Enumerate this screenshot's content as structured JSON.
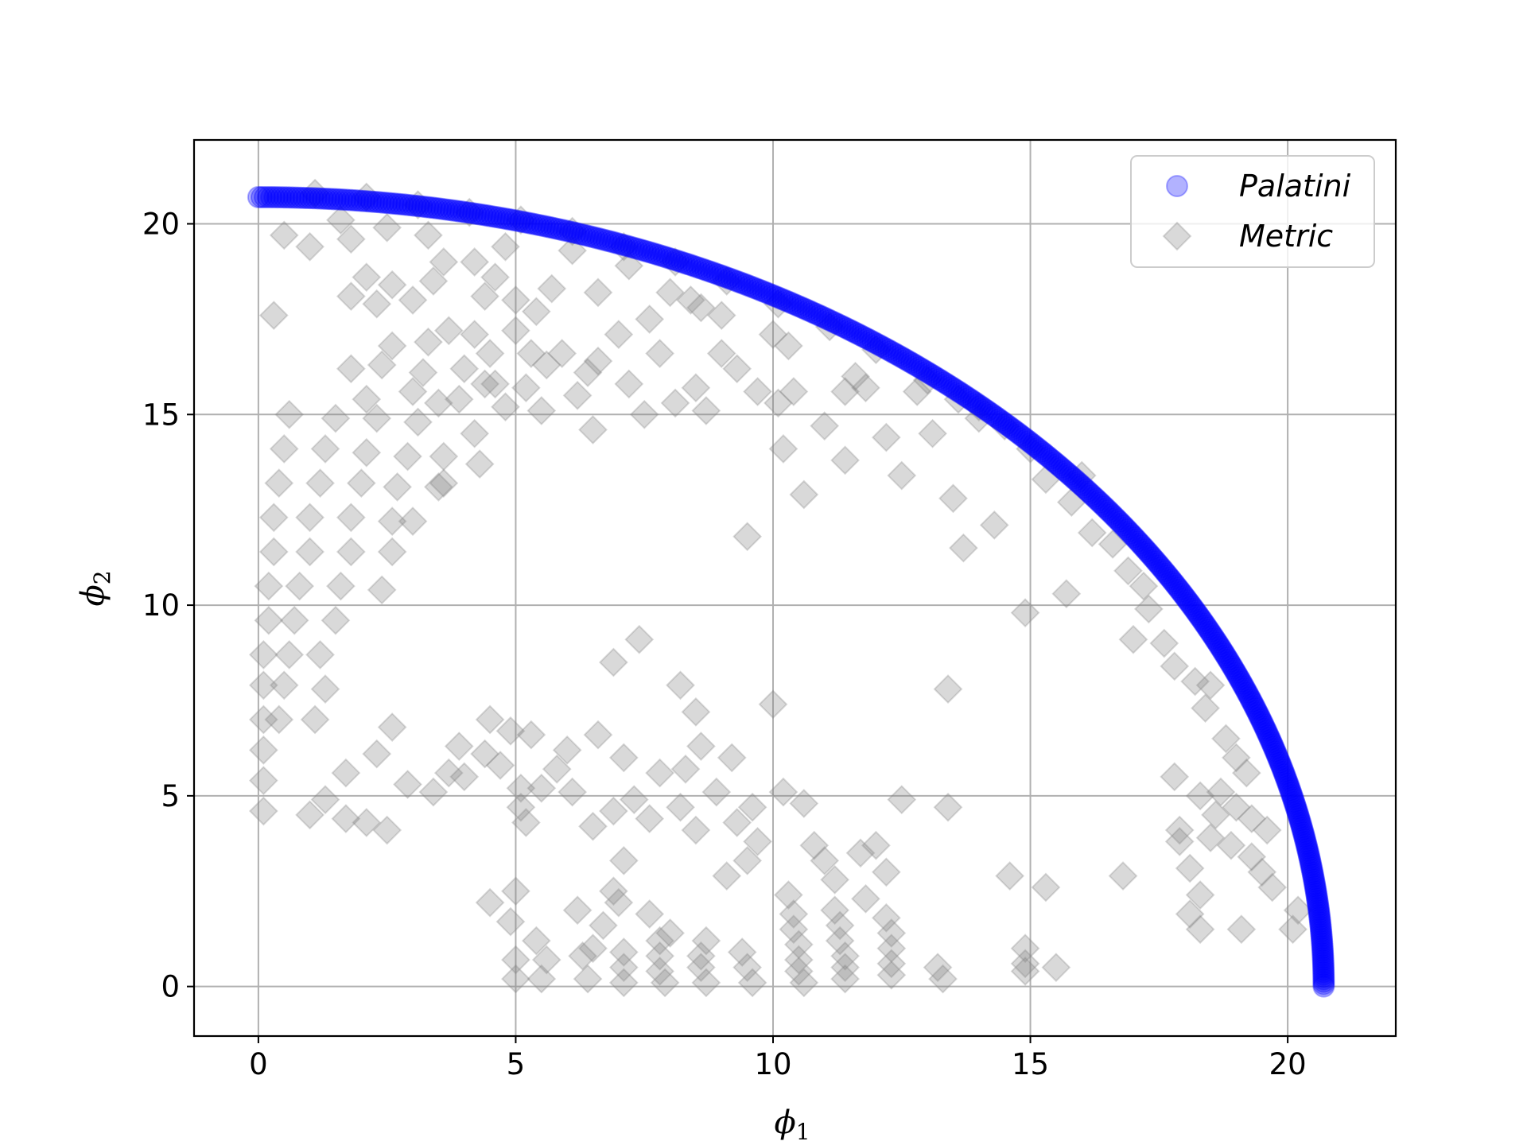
{
  "chart_data": {
    "type": "scatter",
    "xlabel": "ϕ",
    "xlabel_sub": "1",
    "ylabel": "ϕ",
    "ylabel_sub": "2",
    "xlim": [
      -1.25,
      22.1
    ],
    "ylim": [
      -1.3,
      22.2
    ],
    "xticks": [
      0,
      5,
      10,
      15,
      20
    ],
    "yticks": [
      0,
      5,
      10,
      15,
      20
    ],
    "grid": true,
    "legend_position": "top-right",
    "series": [
      {
        "name": "Palatini",
        "marker": "circle",
        "color": "#0000ff",
        "alpha": 0.3,
        "radius_data": 20.7,
        "angle_deg_range": [
          0,
          90
        ],
        "count": 520
      },
      {
        "name": "Metric",
        "marker": "diamond",
        "color": "#808080",
        "alpha": 0.3,
        "points": [
          [
            0.3,
            17.6
          ],
          [
            0.6,
            15
          ],
          [
            0.5,
            14.1
          ],
          [
            0.4,
            13.2
          ],
          [
            0.3,
            12.3
          ],
          [
            0.3,
            11.4
          ],
          [
            0.2,
            10.5
          ],
          [
            0.2,
            9.6
          ],
          [
            0.1,
            8.7
          ],
          [
            0.1,
            7.9
          ],
          [
            0.1,
            7
          ],
          [
            0.1,
            6.2
          ],
          [
            0.1,
            5.4
          ],
          [
            0.1,
            4.6
          ],
          [
            1.5,
            14.9
          ],
          [
            2.3,
            14.9
          ],
          [
            3.1,
            14.8
          ],
          [
            1.3,
            14.1
          ],
          [
            2.1,
            14
          ],
          [
            2.9,
            13.9
          ],
          [
            3.6,
            13.9
          ],
          [
            1.2,
            13.2
          ],
          [
            2.0,
            13.2
          ],
          [
            2.7,
            13.1
          ],
          [
            3.5,
            13.1
          ],
          [
            1.0,
            12.3
          ],
          [
            1.8,
            12.3
          ],
          [
            2.6,
            12.2
          ],
          [
            1.0,
            11.4
          ],
          [
            1.8,
            11.4
          ],
          [
            2.6,
            11.4
          ],
          [
            0.8,
            10.5
          ],
          [
            1.6,
            10.5
          ],
          [
            2.4,
            10.4
          ],
          [
            0.7,
            9.6
          ],
          [
            1.5,
            9.6
          ],
          [
            0.6,
            8.7
          ],
          [
            1.2,
            8.7
          ],
          [
            0.5,
            7.9
          ],
          [
            1.3,
            7.8
          ],
          [
            0.4,
            7
          ],
          [
            1.1,
            7
          ],
          [
            1.0,
            4.5
          ],
          [
            1.3,
            4.9
          ],
          [
            1.7,
            4.4
          ],
          [
            2.1,
            4.3
          ],
          [
            2.5,
            4.1
          ],
          [
            1.7,
            5.6
          ],
          [
            2.3,
            6.1
          ],
          [
            2.9,
            5.3
          ],
          [
            2.6,
            6.8
          ],
          [
            3.4,
            5.1
          ],
          [
            3.7,
            5.6
          ],
          [
            4.0,
            5.5
          ],
          [
            4.4,
            6.1
          ],
          [
            4.7,
            5.8
          ],
          [
            4.5,
            7
          ],
          [
            4.9,
            6.7
          ],
          [
            3.9,
            6.3
          ],
          [
            1.8,
            16.2
          ],
          [
            2.1,
            15.4
          ],
          [
            2.6,
            16.8
          ],
          [
            2.4,
            16.3
          ],
          [
            3.0,
            15.6
          ],
          [
            3.2,
            16.1
          ],
          [
            3.5,
            15.3
          ],
          [
            3.3,
            16.9
          ],
          [
            3.7,
            17.2
          ],
          [
            4.2,
            17.1
          ],
          [
            4.5,
            16.6
          ],
          [
            4.0,
            16.2
          ],
          [
            4.4,
            15.8
          ],
          [
            3.9,
            15.4
          ],
          [
            4.2,
            14.5
          ],
          [
            4.6,
            15.8
          ],
          [
            4.8,
            15.2
          ],
          [
            5.0,
            17.2
          ],
          [
            5.3,
            16.6
          ],
          [
            5.2,
            15.7
          ],
          [
            5.6,
            16.3
          ],
          [
            5.5,
            15.1
          ],
          [
            5.9,
            16.6
          ],
          [
            6.2,
            15.5
          ],
          [
            6.4,
            16.1
          ],
          [
            6.6,
            16.4
          ],
          [
            6.5,
            14.6
          ],
          [
            7.0,
            17.1
          ],
          [
            7.2,
            15.8
          ],
          [
            7.5,
            15
          ],
          [
            7.8,
            16.6
          ],
          [
            8.1,
            15.3
          ],
          [
            8.5,
            15.7
          ],
          [
            8.7,
            15.1
          ],
          [
            9.0,
            16.6
          ],
          [
            9.3,
            16.2
          ],
          [
            9.7,
            15.6
          ],
          [
            4.3,
            13.7
          ],
          [
            3.0,
            12.2
          ],
          [
            3.6,
            13.2
          ],
          [
            0.5,
            19.7
          ],
          [
            1.0,
            19.4
          ],
          [
            1.6,
            20.1
          ],
          [
            1.8,
            19.6
          ],
          [
            2.1,
            18.6
          ],
          [
            1.8,
            18.1
          ],
          [
            2.3,
            17.9
          ],
          [
            2.6,
            18.4
          ],
          [
            3.0,
            18.0
          ],
          [
            3.4,
            18.5
          ],
          [
            3.6,
            19.0
          ],
          [
            4.2,
            19.0
          ],
          [
            4.6,
            18.6
          ],
          [
            4.8,
            19.4
          ],
          [
            5.0,
            18.0
          ],
          [
            5.4,
            17.7
          ],
          [
            5.7,
            18.3
          ],
          [
            6.1,
            19.3
          ],
          [
            6.6,
            18.2
          ],
          [
            7.2,
            18.9
          ],
          [
            7.6,
            17.5
          ],
          [
            8.0,
            18.2
          ],
          [
            8.4,
            18.0
          ],
          [
            8.6,
            17.8
          ],
          [
            9.0,
            17.6
          ],
          [
            2.5,
            19.9
          ],
          [
            3.3,
            19.7
          ],
          [
            4.4,
            18.1
          ],
          [
            10.0,
            17.1
          ],
          [
            10.3,
            16.8
          ],
          [
            10.1,
            15.3
          ],
          [
            10.4,
            15.6
          ],
          [
            10.2,
            14.1
          ],
          [
            10.6,
            12.9
          ],
          [
            11.0,
            14.7
          ],
          [
            11.4,
            15.6
          ],
          [
            11.6,
            16
          ],
          [
            11.4,
            13.8
          ],
          [
            11.8,
            15.7
          ],
          [
            12.2,
            14.4
          ],
          [
            12.5,
            13.4
          ],
          [
            12.8,
            15.6
          ],
          [
            13.1,
            14.5
          ],
          [
            13.5,
            12.8
          ],
          [
            13.7,
            11.5
          ],
          [
            14.0,
            14.9
          ],
          [
            14.3,
            12.1
          ],
          [
            9.5,
            11.8
          ],
          [
            14.9,
            9.8
          ],
          [
            15.7,
            10.3
          ],
          [
            13.6,
            15.4
          ],
          [
            7.4,
            9.1
          ],
          [
            6.9,
            8.5
          ],
          [
            8.2,
            7.9
          ],
          [
            8.5,
            7.2
          ],
          [
            8.6,
            6.3
          ],
          [
            8.3,
            5.7
          ],
          [
            7.1,
            6
          ],
          [
            6.6,
            6.6
          ],
          [
            6.0,
            6.2
          ],
          [
            5.8,
            5.7
          ],
          [
            5.5,
            5.2
          ],
          [
            5.3,
            6.6
          ],
          [
            5.1,
            5.2
          ],
          [
            5.1,
            4.7
          ],
          [
            5.2,
            4.3
          ],
          [
            6.1,
            5.1
          ],
          [
            6.5,
            4.2
          ],
          [
            6.9,
            4.6
          ],
          [
            7.3,
            4.9
          ],
          [
            7.6,
            4.4
          ],
          [
            7.1,
            3.3
          ],
          [
            7.8,
            5.6
          ],
          [
            8.2,
            4.7
          ],
          [
            8.5,
            4.1
          ],
          [
            8.9,
            5.1
          ],
          [
            9.3,
            4.3
          ],
          [
            9.6,
            4.7
          ],
          [
            9.7,
            3.8
          ],
          [
            9.5,
            3.3
          ],
          [
            9.1,
            2.9
          ],
          [
            9.2,
            6
          ],
          [
            10.0,
            7.4
          ],
          [
            10.2,
            5.1
          ],
          [
            10.6,
            4.8
          ],
          [
            10.8,
            3.7
          ],
          [
            11.0,
            3.3
          ],
          [
            11.2,
            2.8
          ],
          [
            11.7,
            3.5
          ],
          [
            12.0,
            3.7
          ],
          [
            12.2,
            3.0
          ],
          [
            11.8,
            2.3
          ],
          [
            12.5,
            4.9
          ],
          [
            13.4,
            4.7
          ],
          [
            13.4,
            7.8
          ],
          [
            14.6,
            2.9
          ],
          [
            15.3,
            2.6
          ],
          [
            16.8,
            2.9
          ],
          [
            15.5,
            0.5
          ],
          [
            4.5,
            2.2
          ],
          [
            4.9,
            1.7
          ],
          [
            5.0,
            2.5
          ],
          [
            5.4,
            1.2
          ],
          [
            6.2,
            2.0
          ],
          [
            6.7,
            1.6
          ],
          [
            6.5,
            1.0
          ],
          [
            6.9,
            2.5
          ],
          [
            7.0,
            2.2
          ],
          [
            7.1,
            0.9
          ],
          [
            7.6,
            1.9
          ],
          [
            8.0,
            1.4
          ],
          [
            8.7,
            1.2
          ],
          [
            8.6,
            0.8
          ],
          [
            5.0,
            0.7
          ],
          [
            5.0,
            0.2
          ],
          [
            5.6,
            0.7
          ],
          [
            5.5,
            0.2
          ],
          [
            6.3,
            0.8
          ],
          [
            6.4,
            0.2
          ],
          [
            7.1,
            0.5
          ],
          [
            7.1,
            0.1
          ],
          [
            7.8,
            1.2
          ],
          [
            7.8,
            0.8
          ],
          [
            7.8,
            0.4
          ],
          [
            7.9,
            0.1
          ],
          [
            8.6,
            0.5
          ],
          [
            8.7,
            0.1
          ],
          [
            9.4,
            0.9
          ],
          [
            9.5,
            0.5
          ],
          [
            9.6,
            0.1
          ],
          [
            10.3,
            2.4
          ],
          [
            10.4,
            1.9
          ],
          [
            10.4,
            1.5
          ],
          [
            10.5,
            1.1
          ],
          [
            10.5,
            0.7
          ],
          [
            10.5,
            0.4
          ],
          [
            10.6,
            0.1
          ],
          [
            11.2,
            2.0
          ],
          [
            11.3,
            1.6
          ],
          [
            11.3,
            1.2
          ],
          [
            11.4,
            0.8
          ],
          [
            11.4,
            0.5
          ],
          [
            11.4,
            0.2
          ],
          [
            12.2,
            1.8
          ],
          [
            12.3,
            1.4
          ],
          [
            12.3,
            1.0
          ],
          [
            12.3,
            0.6
          ],
          [
            12.3,
            0.3
          ],
          [
            13.2,
            0.5
          ],
          [
            13.3,
            0.2
          ],
          [
            14.9,
            1
          ],
          [
            14.9,
            0.6
          ],
          [
            14.9,
            0.4
          ],
          [
            17.3,
            9.9
          ],
          [
            17.0,
            9.1
          ],
          [
            17.6,
            9.0
          ],
          [
            17.8,
            8.4
          ],
          [
            18.2,
            8.0
          ],
          [
            18.5,
            7.9
          ],
          [
            18.4,
            7.3
          ],
          [
            18.8,
            6.5
          ],
          [
            19.0,
            6.0
          ],
          [
            19.2,
            5.6
          ],
          [
            18.7,
            5.1
          ],
          [
            19.0,
            4.7
          ],
          [
            19.3,
            4.4
          ],
          [
            19.6,
            4.1
          ],
          [
            18.9,
            3.7
          ],
          [
            19.3,
            3.4
          ],
          [
            19.5,
            3.0
          ],
          [
            17.8,
            5.5
          ],
          [
            17.9,
            4.1
          ],
          [
            17.9,
            3.8
          ],
          [
            18.1,
            3.1
          ],
          [
            18.3,
            2.4
          ],
          [
            18.1,
            1.9
          ],
          [
            18.3,
            1.5
          ],
          [
            19.1,
            1.5
          ],
          [
            20.1,
            1.5
          ],
          [
            18.3,
            5.0
          ],
          [
            18.5,
            3.9
          ],
          [
            19.7,
            2.6
          ],
          [
            20.2,
            2.0
          ],
          [
            18.6,
            4.5
          ],
          [
            15.3,
            13.3
          ],
          [
            15.8,
            12.7
          ],
          [
            16.2,
            11.9
          ],
          [
            16.6,
            11.6
          ],
          [
            16.9,
            10.9
          ],
          [
            17.2,
            10.5
          ],
          [
            16.0,
            13.4
          ],
          [
            15.0,
            14.1
          ],
          [
            14.5,
            14.7
          ],
          [
            14.0,
            15.2
          ],
          [
            13.0,
            15.9
          ],
          [
            12.0,
            16.7
          ],
          [
            11.1,
            17.3
          ],
          [
            10.1,
            17.9
          ],
          [
            9.1,
            18.5
          ],
          [
            8.1,
            19.0
          ],
          [
            7.1,
            19.4
          ],
          [
            6.1,
            19.8
          ],
          [
            5.1,
            20.1
          ],
          [
            4.1,
            20.3
          ],
          [
            3.1,
            20.5
          ],
          [
            2.1,
            20.7
          ],
          [
            1.1,
            20.8
          ]
        ]
      }
    ]
  }
}
